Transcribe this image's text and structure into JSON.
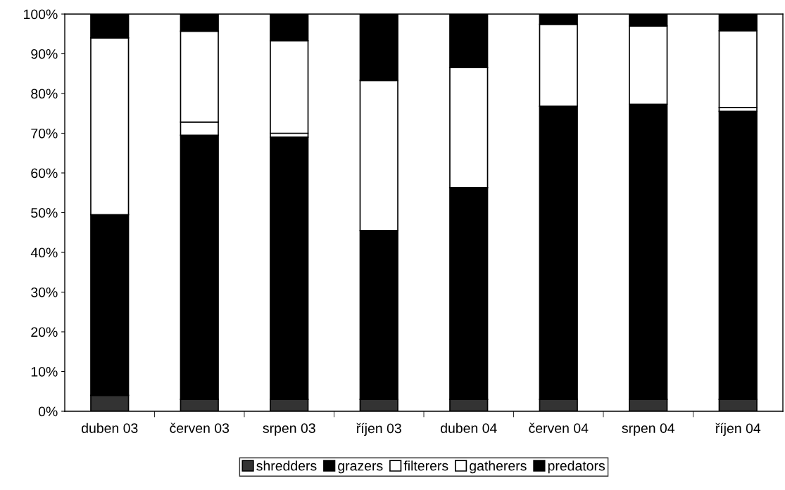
{
  "chart_data": {
    "type": "bar",
    "stacked": true,
    "categories": [
      "duben 03",
      "červen 03",
      "srpen 03",
      "říjen 03",
      "duben 04",
      "červen 04",
      "srpen 04",
      "říjen 04"
    ],
    "series": [
      {
        "name": "shredders",
        "color": "#333333",
        "values": [
          4,
          3,
          3,
          3,
          3,
          3,
          3,
          3
        ]
      },
      {
        "name": "grazers",
        "color": "#000000",
        "values": [
          45.5,
          66.5,
          66,
          42.5,
          53.3,
          73.8,
          74.3,
          72.5
        ]
      },
      {
        "name": "filterers",
        "color": "#ffffff",
        "values": [
          0,
          3.3,
          1,
          0,
          0,
          0,
          0,
          1
        ]
      },
      {
        "name": "gatherers",
        "color": "#ffffff",
        "values": [
          44.5,
          22.9,
          23.3,
          37.8,
          30.2,
          20.6,
          19.7,
          19.3
        ]
      },
      {
        "name": "predators",
        "color": "#000000",
        "values": [
          6,
          4.3,
          6.7,
          16.7,
          13.5,
          2.6,
          3,
          4.2
        ]
      }
    ],
    "ylim": [
      0,
      100
    ],
    "yticks": [
      {
        "value": 0,
        "label": "0%"
      },
      {
        "value": 10,
        "label": "10%"
      },
      {
        "value": 20,
        "label": "20%"
      },
      {
        "value": 30,
        "label": "30%"
      },
      {
        "value": 40,
        "label": "40%"
      },
      {
        "value": 50,
        "label": "50%"
      },
      {
        "value": 60,
        "label": "60%"
      },
      {
        "value": 70,
        "label": "70%"
      },
      {
        "value": 80,
        "label": "80%"
      },
      {
        "value": 90,
        "label": "90%"
      },
      {
        "value": 100,
        "label": "100%"
      }
    ],
    "grid": false,
    "legend": "bottom"
  }
}
